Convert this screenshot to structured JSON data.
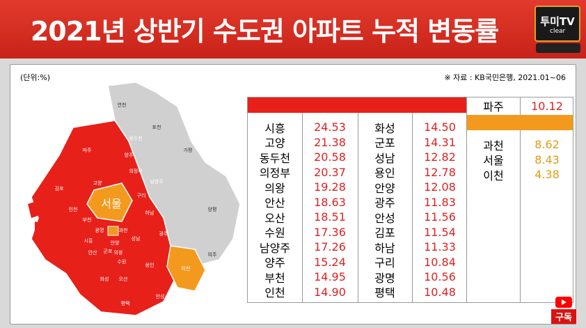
{
  "header": {
    "title": "2021년 상반기 수도권 아파트 누적 변동률",
    "logo": "투미TV",
    "logo_sub": "clear"
  },
  "unit": "(단위:%)",
  "source": "※ 자료 : KB국민은행, 2021.01~06",
  "colors": {
    "red": "#e8201a",
    "orange": "#f39a1e",
    "gray": "#d0d0d0"
  },
  "map": {
    "center": "서울",
    "labels": [
      "연천",
      "포천",
      "동두천",
      "파주",
      "양주",
      "가평",
      "의정부",
      "고양",
      "남양주",
      "김포",
      "서울",
      "하남",
      "양평",
      "인천",
      "부천",
      "광명",
      "과천",
      "구리",
      "시흥",
      "안산",
      "안양",
      "성남",
      "광주",
      "군포",
      "의왕",
      "수원",
      "용인",
      "이천",
      "여주",
      "화성",
      "오산",
      "평택",
      "안성"
    ]
  },
  "table": {
    "col1": [
      {
        "name": "시흥",
        "value": "24.53"
      },
      {
        "name": "고양",
        "value": "21.38"
      },
      {
        "name": "동두천",
        "value": "20.58"
      },
      {
        "name": "의정부",
        "value": "20.37"
      },
      {
        "name": "의왕",
        "value": "19.28"
      },
      {
        "name": "안산",
        "value": "18.63"
      },
      {
        "name": "오산",
        "value": "18.51"
      },
      {
        "name": "수원",
        "value": "17.36"
      },
      {
        "name": "남양주",
        "value": "17.26"
      },
      {
        "name": "양주",
        "value": "15.24"
      },
      {
        "name": "부천",
        "value": "14.95"
      },
      {
        "name": "인천",
        "value": "14.90"
      }
    ],
    "col2": [
      {
        "name": "화성",
        "value": "14.50"
      },
      {
        "name": "군포",
        "value": "14.31"
      },
      {
        "name": "성남",
        "value": "12.82"
      },
      {
        "name": "용인",
        "value": "12.78"
      },
      {
        "name": "안양",
        "value": "12.08"
      },
      {
        "name": "광주",
        "value": "11.83"
      },
      {
        "name": "안성",
        "value": "11.56"
      },
      {
        "name": "김포",
        "value": "11.54"
      },
      {
        "name": "하남",
        "value": "11.33"
      },
      {
        "name": "구리",
        "value": "10.84"
      },
      {
        "name": "광명",
        "value": "10.56"
      },
      {
        "name": "평택",
        "value": "10.48"
      }
    ],
    "paju": {
      "name": "파주",
      "value": "10.12"
    },
    "orange_group": [
      {
        "name": "과천",
        "value": "8.62"
      },
      {
        "name": "서울",
        "value": "8.43"
      },
      {
        "name": "이천",
        "value": "4.38"
      }
    ]
  },
  "subscribe": "구독"
}
